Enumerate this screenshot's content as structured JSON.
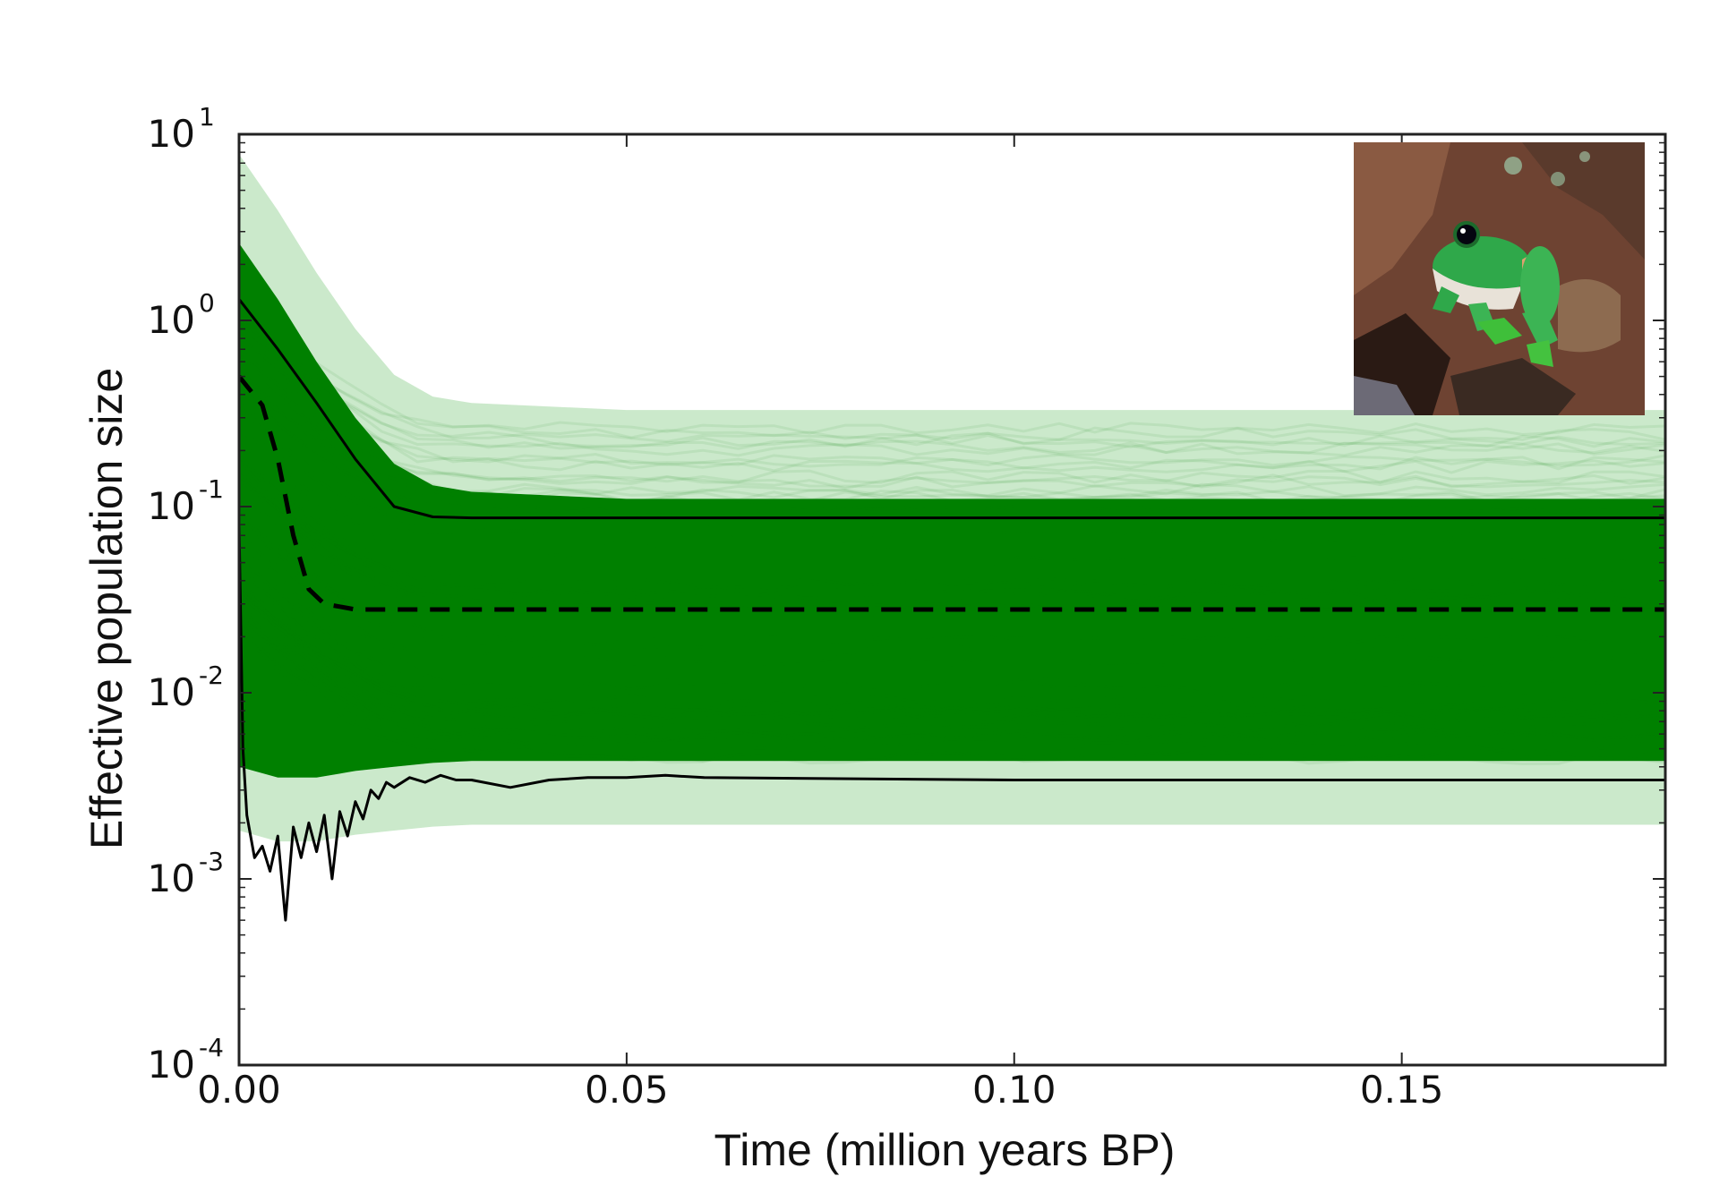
{
  "chart_data": {
    "type": "line",
    "xlabel": "Time (million years BP)",
    "ylabel": "Effective population size",
    "xlim": [
      0.0,
      0.184
    ],
    "ylim": [
      0.0001,
      10
    ],
    "yscale": "log",
    "x_ticks": [
      "0.00",
      "0.05",
      "0.10",
      "0.15"
    ],
    "x_tick_values": [
      0.0,
      0.05,
      0.1,
      0.15
    ],
    "y_ticks": [
      {
        "base": "10",
        "exp": "1",
        "value": 10
      },
      {
        "base": "10",
        "exp": "0",
        "value": 1
      },
      {
        "base": "10",
        "exp": "-1",
        "value": 0.1
      },
      {
        "base": "10",
        "exp": "-2",
        "value": 0.01
      },
      {
        "base": "10",
        "exp": "-3",
        "value": 0.001
      },
      {
        "base": "10",
        "exp": "-4",
        "value": 0.0001
      }
    ],
    "grid": false,
    "legend": "none",
    "colors": {
      "band": "#008000",
      "band_light": "#6abf6a",
      "lines": "#000000"
    },
    "series": [
      {
        "style": "solid",
        "role": "upper bound",
        "x": [
          0.0,
          0.005,
          0.01,
          0.015,
          0.02,
          0.025,
          0.03,
          0.05,
          0.1,
          0.15,
          0.184
        ],
        "values": [
          1.3,
          0.7,
          0.36,
          0.18,
          0.1,
          0.088,
          0.087,
          0.087,
          0.087,
          0.087,
          0.087
        ]
      },
      {
        "style": "dashed",
        "role": "median",
        "x": [
          0.0,
          0.003,
          0.005,
          0.007,
          0.009,
          0.011,
          0.013,
          0.015,
          0.02,
          0.05,
          0.1,
          0.15,
          0.184
        ],
        "values": [
          0.5,
          0.35,
          0.18,
          0.07,
          0.036,
          0.03,
          0.029,
          0.028,
          0.028,
          0.028,
          0.028,
          0.028,
          0.028
        ]
      },
      {
        "style": "solid",
        "role": "lower bound",
        "x": [
          0.0,
          0.0005,
          0.001,
          0.002,
          0.003,
          0.004,
          0.005,
          0.006,
          0.007,
          0.008,
          0.009,
          0.01,
          0.011,
          0.012,
          0.013,
          0.014,
          0.015,
          0.016,
          0.017,
          0.018,
          0.019,
          0.02,
          0.022,
          0.024,
          0.026,
          0.028,
          0.03,
          0.035,
          0.04,
          0.045,
          0.05,
          0.055,
          0.06,
          0.1,
          0.15,
          0.184
        ],
        "values": [
          0.08,
          0.005,
          0.0022,
          0.0013,
          0.0015,
          0.0011,
          0.0017,
          0.0006,
          0.0019,
          0.0013,
          0.002,
          0.0014,
          0.0022,
          0.001,
          0.0023,
          0.0017,
          0.0026,
          0.0021,
          0.003,
          0.0027,
          0.0033,
          0.0031,
          0.0035,
          0.0033,
          0.0036,
          0.0034,
          0.0034,
          0.0031,
          0.0034,
          0.0035,
          0.0035,
          0.0036,
          0.0035,
          0.0034,
          0.0034,
          0.0034
        ]
      }
    ],
    "band": {
      "x": [
        0.0,
        0.005,
        0.01,
        0.015,
        0.02,
        0.025,
        0.03,
        0.05,
        0.1,
        0.15,
        0.184
      ],
      "upper": [
        2.6,
        1.3,
        0.6,
        0.3,
        0.17,
        0.13,
        0.12,
        0.11,
        0.11,
        0.11,
        0.11
      ],
      "lower": [
        0.004,
        0.0035,
        0.0035,
        0.0038,
        0.004,
        0.0042,
        0.0043,
        0.0043,
        0.0043,
        0.0043,
        0.0043
      ]
    }
  },
  "inset": {
    "icon": "frog-photo",
    "colors": {
      "soil": "#7a4a35",
      "frog": "#2fa84a",
      "shadow": "#2a1a14"
    }
  }
}
